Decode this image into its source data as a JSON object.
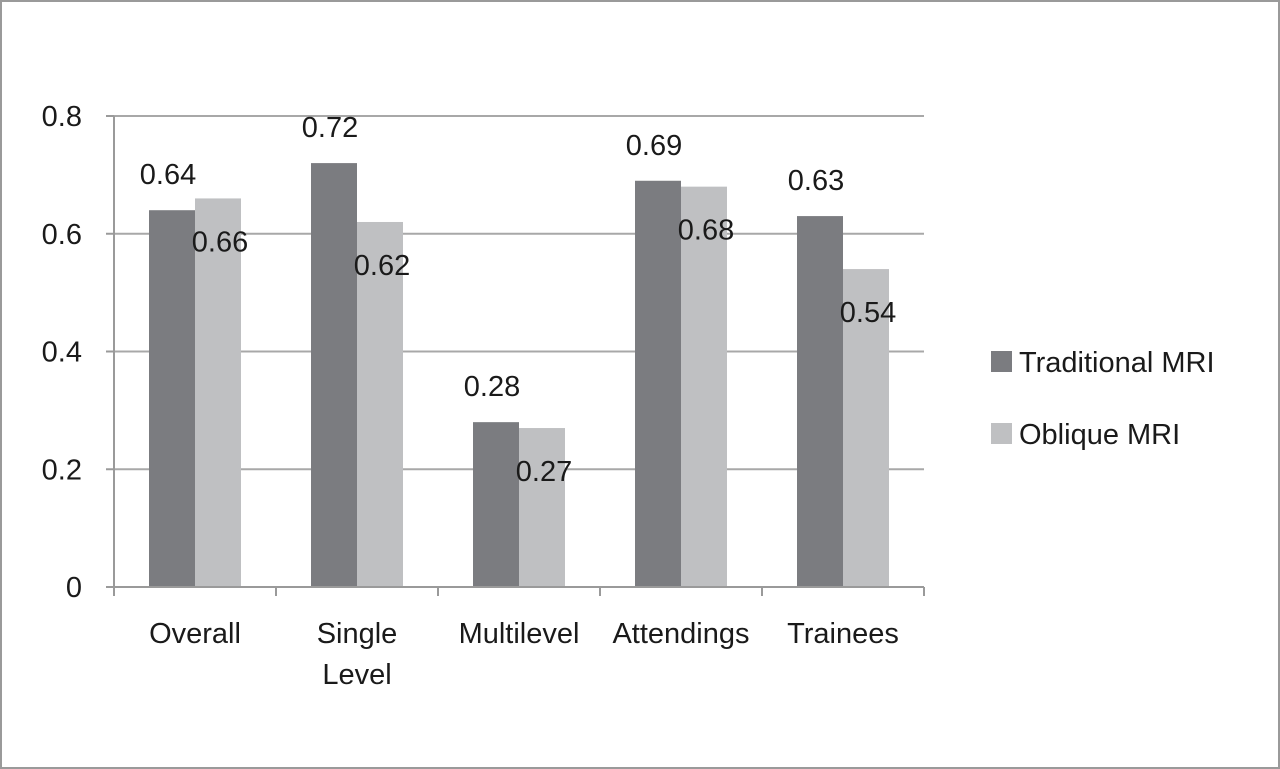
{
  "chart_data": {
    "type": "bar",
    "categories": [
      [
        "Overall"
      ],
      [
        "Single",
        "Level"
      ],
      [
        "Multilevel"
      ],
      [
        "Attendings"
      ],
      [
        "Trainees"
      ]
    ],
    "series": [
      {
        "name": "Traditional MRI",
        "color": "#7b7c80",
        "values": [
          0.64,
          0.72,
          0.28,
          0.69,
          0.63
        ],
        "labels": [
          "0.64",
          "0.72",
          "0.28",
          "0.69",
          "0.63"
        ]
      },
      {
        "name": "Oblique MRI",
        "color": "#bfc0c2",
        "values": [
          0.66,
          0.62,
          0.27,
          0.68,
          0.54
        ],
        "labels": [
          "0.66",
          "0.62",
          "0.27",
          "0.68",
          "0.54"
        ]
      }
    ],
    "yticks": [
      "0",
      "0.2",
      "0.4",
      "0.6",
      "0.8"
    ],
    "ylim": [
      0,
      0.8
    ],
    "grid": true,
    "legend_position": "right",
    "title": "",
    "xlabel": "",
    "ylabel": ""
  }
}
